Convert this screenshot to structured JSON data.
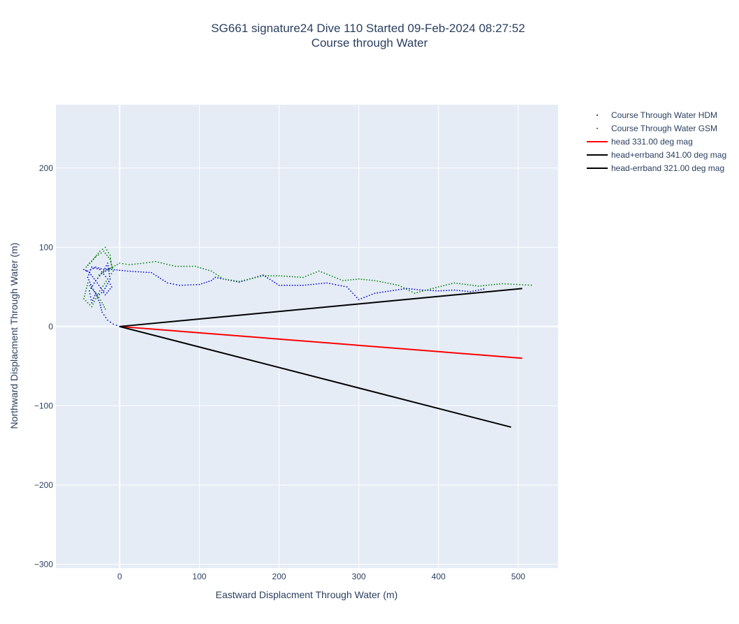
{
  "chart_data": {
    "type": "line",
    "title_line1": "SG661 signature24 Dive 110 Started 09-Feb-2024 08:27:52",
    "title_line2": "Course through Water",
    "xlabel": "Eastward Displacment Through Water (m)",
    "ylabel": "Northward Displacment Through Water (m)",
    "xlim": [
      -80,
      550
    ],
    "ylim": [
      -305,
      280
    ],
    "x_ticks": [
      0,
      100,
      200,
      300,
      400,
      500
    ],
    "x_tick_labels": [
      "0",
      "100",
      "200",
      "300",
      "400",
      "500"
    ],
    "y_ticks": [
      200,
      100,
      0,
      -100,
      -200,
      -300
    ],
    "y_tick_labels": [
      "200",
      "100",
      "0",
      "−100",
      "−200",
      "−300"
    ],
    "grid": true,
    "legend_position": "top-right",
    "colors": {
      "plot_bg": "#e5ecf6",
      "grid": "#ffffff",
      "text": "#2a3f5f"
    },
    "series": [
      {
        "name": "Course Through Water HDM",
        "mode": "markers",
        "color": "#0000cc",
        "x": [
          0,
          -8,
          -15,
          -22,
          -25,
          -30,
          -35,
          -38,
          -30,
          -20,
          -15,
          -12,
          -20,
          -28,
          -35,
          -40,
          -35,
          -25,
          -15,
          -10,
          -18,
          -28,
          -38,
          -45,
          -40,
          -30,
          -20,
          -10,
          10,
          40,
          60,
          75,
          100,
          115,
          120,
          150,
          180,
          200,
          230,
          260,
          285,
          300,
          320,
          340,
          360,
          380,
          400,
          420,
          440,
          460
        ],
        "y": [
          0,
          3,
          8,
          18,
          30,
          42,
          30,
          45,
          58,
          70,
          80,
          60,
          45,
          38,
          50,
          62,
          75,
          72,
          60,
          50,
          40,
          55,
          68,
          72,
          70,
          75,
          72,
          72,
          70,
          68,
          55,
          52,
          53,
          58,
          62,
          56,
          65,
          52,
          52,
          55,
          50,
          34,
          42,
          45,
          48,
          46,
          45,
          46,
          44,
          48
        ]
      },
      {
        "name": "Course Through Water GSM",
        "mode": "markers",
        "color": "#008000",
        "x": [
          -18,
          -22,
          -28,
          -35,
          -40,
          -45,
          -35,
          -25,
          -15,
          -8,
          -12,
          -20,
          -30,
          -38,
          -42,
          -35,
          -25,
          -18,
          -12,
          -10,
          -18,
          -26,
          0,
          12,
          30,
          45,
          70,
          95,
          115,
          130,
          150,
          180,
          200,
          230,
          250,
          280,
          300,
          320,
          350,
          370,
          400,
          420,
          450,
          480,
          520
        ],
        "y": [
          22,
          30,
          40,
          48,
          55,
          35,
          25,
          45,
          60,
          70,
          85,
          95,
          88,
          80,
          75,
          82,
          95,
          100,
          90,
          75,
          70,
          65,
          80,
          78,
          80,
          82,
          76,
          76,
          70,
          60,
          57,
          64,
          64,
          62,
          70,
          58,
          60,
          58,
          52,
          42,
          50,
          55,
          51,
          54,
          52
        ]
      },
      {
        "name": "head 331.00 deg mag",
        "mode": "lines",
        "color": "#ff0000",
        "x": [
          0,
          505
        ],
        "y": [
          0,
          -40
        ]
      },
      {
        "name": "head+errband 341.00 deg mag",
        "mode": "lines",
        "color": "#000000",
        "x": [
          0,
          505
        ],
        "y": [
          0,
          48
        ]
      },
      {
        "name": "head-errband 321.00 deg mag",
        "mode": "lines",
        "color": "#000000",
        "x": [
          0,
          491
        ],
        "y": [
          0,
          -127
        ]
      }
    ]
  }
}
